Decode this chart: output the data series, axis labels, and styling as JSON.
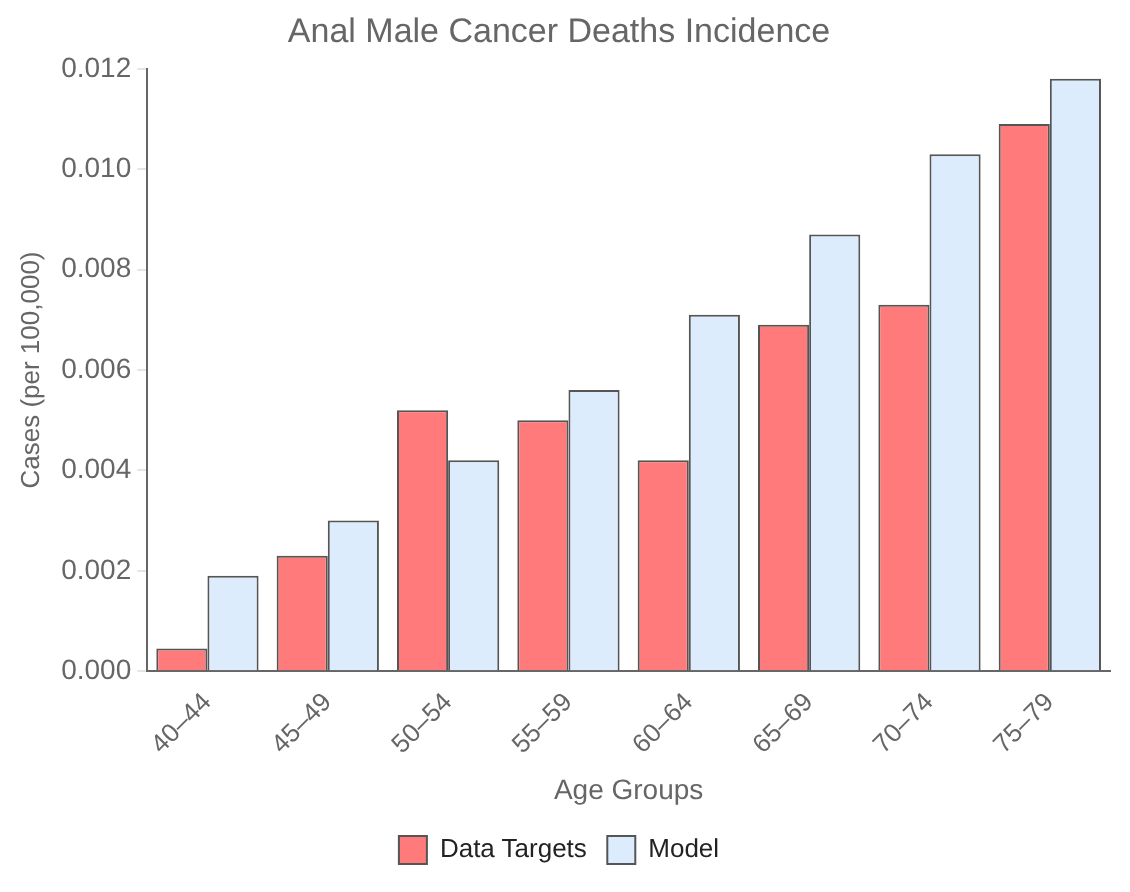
{
  "chart_data": {
    "type": "bar",
    "title": "Anal Male Cancer Deaths Incidence",
    "xlabel": "Age Groups",
    "ylabel": "Cases (per 100,000)",
    "categories": [
      "40–44",
      "45–49",
      "50–54",
      "55–59",
      "60–64",
      "65–69",
      "70–74",
      "75–79"
    ],
    "series": [
      {
        "name": "Data Targets",
        "color": "#ff7b7b",
        "values": [
          0.00045,
          0.0023,
          0.0052,
          0.005,
          0.0042,
          0.0069,
          0.0073,
          0.0109
        ]
      },
      {
        "name": "Model",
        "color": "#dcecfc",
        "values": [
          0.0019,
          0.003,
          0.0042,
          0.0056,
          0.0071,
          0.0087,
          0.0103,
          0.0118
        ]
      }
    ],
    "ylim": [
      0,
      0.012
    ],
    "yticks": [
      {
        "value": 0,
        "label": "0.000"
      },
      {
        "value": 0.002,
        "label": "0.002"
      },
      {
        "value": 0.004,
        "label": "0.004"
      },
      {
        "value": 0.006,
        "label": "0.006"
      },
      {
        "value": 0.008,
        "label": "0.008"
      },
      {
        "value": 0.01,
        "label": "0.010"
      },
      {
        "value": 0.012,
        "label": "0.012"
      }
    ],
    "grid": false,
    "legend": "bottom"
  }
}
